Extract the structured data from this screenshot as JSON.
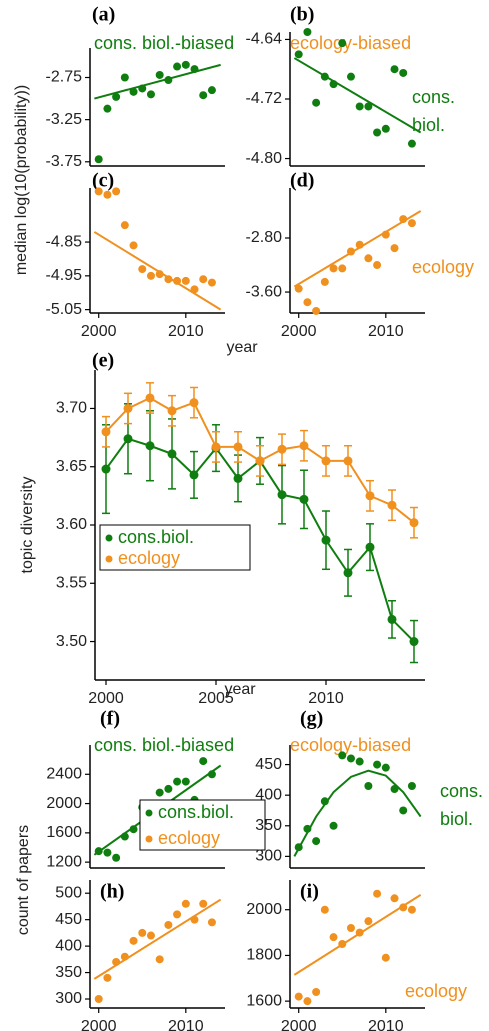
{
  "chart_data": [
    {
      "type": "scatter",
      "label": "(a)",
      "subtitle": "cons. biol.-biased",
      "subtitle_color": "#0f7d0f",
      "color": "#0f7d0f",
      "ylabel": "median log(10(probability))",
      "x": [
        2000,
        2001,
        2002,
        2003,
        2004,
        2005,
        2006,
        2007,
        2008,
        2009,
        2010,
        2011,
        2012,
        2013
      ],
      "values": [
        -3.72,
        -3.12,
        -2.98,
        -2.75,
        -2.92,
        -2.88,
        -2.95,
        -2.72,
        -2.78,
        -2.62,
        -2.6,
        -2.65,
        -2.96,
        -2.9
      ],
      "fit": {
        "x": [
          1999.5,
          2014
        ],
        "y": [
          -3.0,
          -2.6
        ]
      },
      "xlim": [
        1999,
        2014.5
      ],
      "ylim": [
        -3.8,
        -2.4
      ],
      "yticks": [
        -2.75,
        -3.25,
        -3.75
      ]
    },
    {
      "type": "scatter",
      "label": "(b)",
      "subtitle": "ecology-biased",
      "subtitle_color": "#f0901e",
      "color": "#0f7d0f",
      "annotation": [
        "cons.",
        "biol."
      ],
      "annotation_color": "#0f7d0f",
      "x": [
        2000,
        2001,
        2002,
        2003,
        2004,
        2005,
        2006,
        2007,
        2008,
        2009,
        2010,
        2011,
        2012,
        2013
      ],
      "values": [
        -4.66,
        -4.63,
        -4.725,
        -4.69,
        -4.7,
        -4.645,
        -4.69,
        -4.73,
        -4.73,
        -4.765,
        -4.76,
        -4.68,
        -4.685,
        -4.78
      ],
      "fit": {
        "x": [
          1999.5,
          2014
        ],
        "y": [
          -4.665,
          -4.765
        ]
      },
      "xlim": [
        1999,
        2014.5
      ],
      "ylim": [
        -4.81,
        -4.63
      ],
      "yticks": [
        -4.64,
        -4.72,
        {
          "value": -4.8,
          "label": "-4.80"
        }
      ]
    },
    {
      "type": "scatter",
      "label": "(c)",
      "color": "#f0901e",
      "xlabel": "year",
      "x": [
        2000,
        2001,
        2002,
        2003,
        2004,
        2005,
        2006,
        2007,
        2008,
        2009,
        2010,
        2011,
        2012,
        2013
      ],
      "values": [
        -4.7,
        -4.71,
        -4.7,
        -4.8,
        -4.86,
        -4.93,
        -4.95,
        -4.945,
        -4.96,
        -4.965,
        -4.965,
        -4.99,
        -4.96,
        -4.97
      ],
      "fit": {
        "x": [
          1999.5,
          2014
        ],
        "y": [
          -4.82,
          -5.05
        ]
      },
      "xlim": [
        1999,
        2014.5
      ],
      "ylim": [
        -5.06,
        -4.69
      ],
      "yticks": [
        -4.85,
        -4.95,
        -5.05
      ],
      "xticks": [
        2000,
        2010
      ]
    },
    {
      "type": "scatter",
      "label": "(d)",
      "color": "#f0901e",
      "annotation": [
        "ecology"
      ],
      "annotation_color": "#f0901e",
      "x": [
        2000,
        2001,
        2002,
        2003,
        2004,
        2005,
        2006,
        2007,
        2008,
        2009,
        2010,
        2011,
        2012,
        2013
      ],
      "values": [
        -3.55,
        -3.75,
        -3.88,
        -3.45,
        -3.25,
        -3.25,
        -3.0,
        -2.9,
        -3.1,
        -3.2,
        -2.75,
        -2.95,
        -2.52,
        -2.58
      ],
      "fit": {
        "x": [
          1999.5,
          2014
        ],
        "y": [
          -3.52,
          -2.4
        ]
      },
      "xlim": [
        1999,
        2014.5
      ],
      "ylim": [
        -3.91,
        -2.06
      ],
      "yticks": [
        {
          "value": -2.8,
          "label": "-2.80"
        },
        {
          "value": -3.6,
          "label": "-3.60"
        }
      ],
      "xticks": [
        2000,
        2010
      ]
    },
    {
      "type": "line",
      "label": "(e)",
      "ylabel": "topic diversity",
      "xlabel": "year",
      "legend": "inside",
      "x": [
        2000,
        2001,
        2002,
        2003,
        2004,
        2005,
        2006,
        2007,
        2008,
        2009,
        2010,
        2011,
        2012,
        2013,
        2014
      ],
      "series": [
        {
          "name": "cons.biol.",
          "color": "#0f7d0f",
          "values": [
            3.648,
            3.674,
            3.668,
            3.661,
            3.643,
            3.666,
            3.64,
            3.655,
            3.626,
            3.622,
            3.587,
            3.559,
            3.581,
            3.519,
            3.5
          ],
          "errors": [
            0.038,
            0.03,
            0.03,
            0.03,
            0.02,
            0.02,
            0.02,
            0.02,
            0.025,
            0.025,
            0.025,
            0.02,
            0.02,
            0.016,
            0.018
          ]
        },
        {
          "name": "ecology",
          "color": "#f0901e",
          "values": [
            3.68,
            3.7,
            3.709,
            3.698,
            3.705,
            3.667,
            3.667,
            3.655,
            3.665,
            3.668,
            3.655,
            3.655,
            3.625,
            3.617,
            3.602
          ],
          "errors": [
            0.013,
            0.013,
            0.013,
            0.013,
            0.013,
            0.013,
            0.013,
            0.013,
            0.013,
            0.013,
            0.013,
            0.013,
            0.013,
            0.013,
            0.013
          ]
        }
      ],
      "xlim": [
        1999.5,
        2014.5
      ],
      "ylim": [
        3.467,
        3.733
      ],
      "yticks": [
        {
          "value": 3.7,
          "label": "3.70"
        },
        3.65,
        {
          "value": 3.6,
          "label": "3.60"
        },
        3.55,
        {
          "value": 3.5,
          "label": "3.50"
        }
      ],
      "xticks": [
        2000,
        2005,
        2010
      ]
    },
    {
      "type": "scatter",
      "label": "(f)",
      "subtitle": "cons. biol.-biased",
      "subtitle_color": "#0f7d0f",
      "color": "#0f7d0f",
      "ylabel": "count of papers",
      "legend": [
        {
          "name": "cons.biol.",
          "color": "#0f7d0f"
        },
        {
          "name": "ecology",
          "color": "#f0901e"
        }
      ],
      "x": [
        2000,
        2001,
        2002,
        2003,
        2004,
        2005,
        2006,
        2007,
        2008,
        2009,
        2010,
        2011,
        2012,
        2013
      ],
      "values": [
        1350,
        1330,
        1260,
        1550,
        1650,
        1950,
        2000,
        2150,
        2200,
        2300,
        2300,
        2050,
        2580,
        2400
      ],
      "fit": {
        "x": [
          1999.5,
          2014
        ],
        "y": [
          1300,
          2520
        ]
      },
      "xlim": [
        1999,
        2014.5
      ],
      "ylim": [
        1120,
        2800
      ],
      "yticks": [
        2400,
        2000,
        1600,
        1200
      ]
    },
    {
      "type": "scatter",
      "label": "(g)",
      "subtitle": "ecology-biased",
      "subtitle_color": "#f0901e",
      "color": "#0f7d0f",
      "annotation": [
        "cons.",
        "biol."
      ],
      "annotation_color": "#0f7d0f",
      "x": [
        2000,
        2001,
        2002,
        2003,
        2004,
        2005,
        2006,
        2007,
        2008,
        2009,
        2010,
        2011,
        2012,
        2013
      ],
      "values": [
        315,
        345,
        325,
        390,
        350,
        465,
        460,
        455,
        415,
        450,
        445,
        410,
        375,
        415
      ],
      "fit": {
        "x": [
          1999.5,
          2002,
          2004,
          2006,
          2008,
          2010,
          2012,
          2014
        ],
        "y": [
          300,
          365,
          405,
          430,
          440,
          432,
          405,
          365
        ]
      },
      "xlim": [
        1999,
        2014.5
      ],
      "ylim": [
        281,
        482
      ],
      "yticks": [
        450,
        400,
        350,
        300
      ]
    },
    {
      "type": "scatter",
      "label": "(h)",
      "color": "#f0901e",
      "x": [
        2000,
        2001,
        2002,
        2003,
        2004,
        2005,
        2006,
        2007,
        2008,
        2009,
        2010,
        2011,
        2012,
        2013
      ],
      "values": [
        300,
        340,
        370,
        380,
        410,
        425,
        420,
        375,
        440,
        460,
        480,
        450,
        480,
        445
      ],
      "fit": {
        "x": [
          1999.5,
          2014
        ],
        "y": [
          338,
          488
        ]
      },
      "xlim": [
        1999,
        2014.5
      ],
      "ylim": [
        283,
        525
      ],
      "yticks": [
        500,
        450,
        400,
        350,
        300
      ],
      "xticks": [
        2000,
        2010
      ]
    },
    {
      "type": "scatter",
      "label": "(i)",
      "color": "#f0901e",
      "annotation": [
        "ecology"
      ],
      "annotation_color": "#f0901e",
      "x": [
        2000,
        2001,
        2002,
        2003,
        2004,
        2005,
        2006,
        2007,
        2008,
        2009,
        2010,
        2011,
        2012,
        2013
      ],
      "values": [
        1620,
        1600,
        1640,
        2000,
        1880,
        1850,
        1920,
        1900,
        1950,
        2070,
        1790,
        2050,
        2010,
        2000
      ],
      "fit": {
        "x": [
          1999.5,
          2014
        ],
        "y": [
          1715,
          2065
        ]
      },
      "xlim": [
        1999,
        2014.5
      ],
      "ylim": [
        1570,
        2130
      ],
      "yticks": [
        2000,
        1800,
        1600
      ],
      "xticks": [
        2000,
        2010
      ]
    }
  ]
}
